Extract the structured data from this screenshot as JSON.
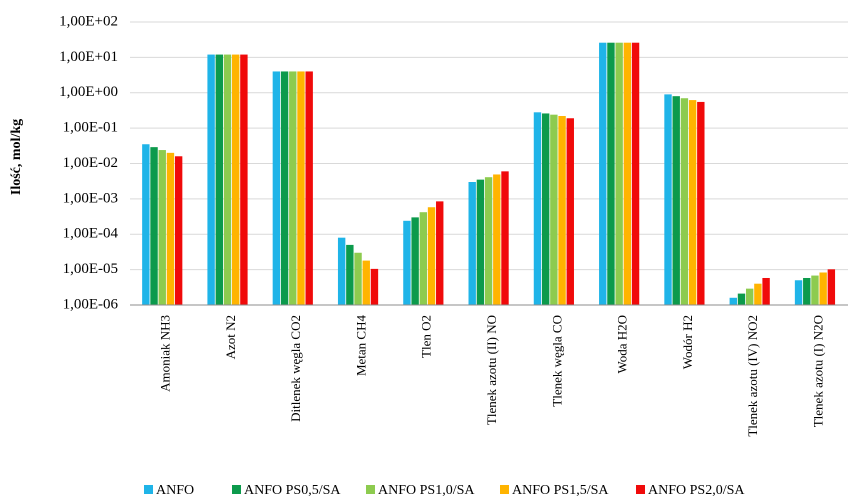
{
  "chart_data": {
    "type": "bar",
    "title": "",
    "xlabel": "",
    "ylabel": "Ilość,  mol/kg",
    "y_scale": "log",
    "ylim": [
      1e-06,
      100
    ],
    "y_ticks": [
      "1,00E+02",
      "1,00E+01",
      "1,00E+00",
      "1,00E-01",
      "1,00E-02",
      "1,00E-03",
      "1,00E-04",
      "1,00E-05",
      "1,00E-06"
    ],
    "grid": true,
    "legend_position": "bottom",
    "categories": [
      "Amoniak NH3",
      "Azot N2",
      "Ditlenek węgla CO2",
      "Metan CH4",
      "Tlen O2",
      "Tlenek azotu (II)  NO",
      "Tlenek węgla CO",
      "Woda H2O",
      "Wodór H2",
      "Tlenek azotu (IV) NO2",
      "Tlenek azotu (I) N2O"
    ],
    "series": [
      {
        "name": "ANFO",
        "color": "#1FB4E8",
        "values": [
          0.035,
          12,
          4.0,
          8e-05,
          0.00024,
          0.003,
          0.28,
          26,
          0.9,
          1.6e-06,
          5e-06
        ]
      },
      {
        "name": "ANFO PS0,5/SA",
        "color": "#0C9A4C",
        "values": [
          0.029,
          12,
          4.0,
          5e-05,
          0.0003,
          0.0035,
          0.26,
          26,
          0.8,
          2.1e-06,
          5.8e-06
        ]
      },
      {
        "name": "ANFO PS1,0/SA",
        "color": "#8DCB4F",
        "values": [
          0.024,
          12,
          4.0,
          3e-05,
          0.00042,
          0.0041,
          0.24,
          26,
          0.7,
          2.9e-06,
          6.8e-06
        ]
      },
      {
        "name": "ANFO PS1,5/SA",
        "color": "#FFB400",
        "values": [
          0.02,
          12,
          4.0,
          1.8e-05,
          0.00058,
          0.0049,
          0.22,
          26,
          0.62,
          4e-06,
          8.3e-06
        ]
      },
      {
        "name": "ANFO PS2,0/SA",
        "color": "#F00A0A",
        "values": [
          0.016,
          12,
          4.0,
          1.05e-05,
          0.00085,
          0.006,
          0.19,
          26,
          0.55,
          5.8e-06,
          1.02e-05
        ]
      }
    ]
  }
}
